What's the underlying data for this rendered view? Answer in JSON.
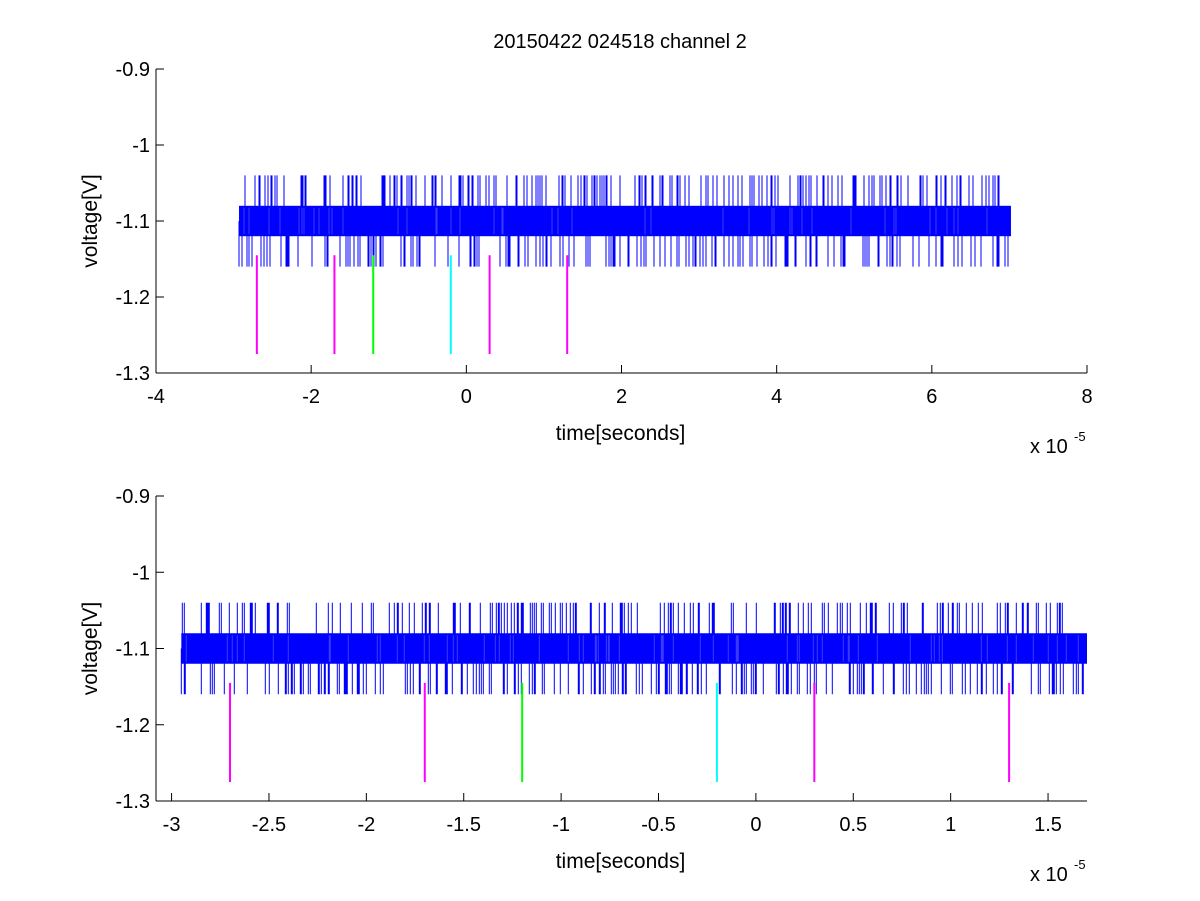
{
  "figure": {
    "title": "20150422 024518 channel 2"
  },
  "colors": {
    "signal": "#0000ff",
    "marker_magenta": "#ff00ff",
    "marker_green": "#00ff00",
    "marker_cyan": "#00ffff",
    "axes": "#000000",
    "background": "#ffffff"
  },
  "chart_data": [
    {
      "type": "line",
      "title": "20150422 024518 channel 2",
      "xlabel": "time[seconds]",
      "ylabel": "voltage[V]",
      "x_exponent_label": "x 10",
      "x_exponent": "-5",
      "xlim": [
        -4,
        8
      ],
      "ylim": [
        -1.3,
        -0.9
      ],
      "xticks": [
        -4,
        -2,
        0,
        2,
        4,
        6,
        8
      ],
      "yticks": [
        -1.3,
        -1.2,
        -1.1,
        -1.0,
        -0.9
      ],
      "xtick_labels": [
        "-4",
        "-2",
        "0",
        "2",
        "4",
        "6",
        "8"
      ],
      "ytick_labels": [
        "-1.3",
        "-1.2",
        "-1.1",
        "-1",
        "-0.9"
      ],
      "grid": false,
      "series": [
        {
          "kind": "noisy-signal",
          "x_range": [
            -2.93,
            7.02
          ],
          "band": [
            -1.12,
            -1.08
          ],
          "spike_high": -1.04,
          "spike_low": -1.16,
          "color": "#0000ff"
        }
      ],
      "markers": [
        {
          "x": -2.7,
          "y_top": -1.145,
          "y_bottom": -1.275,
          "color": "#ff00ff"
        },
        {
          "x": -1.7,
          "y_top": -1.145,
          "y_bottom": -1.275,
          "color": "#ff00ff"
        },
        {
          "x": -1.2,
          "y_top": -1.145,
          "y_bottom": -1.275,
          "color": "#00ff00"
        },
        {
          "x": -0.2,
          "y_top": -1.145,
          "y_bottom": -1.275,
          "color": "#00ffff"
        },
        {
          "x": 0.3,
          "y_top": -1.145,
          "y_bottom": -1.275,
          "color": "#ff00ff"
        },
        {
          "x": 1.3,
          "y_top": -1.145,
          "y_bottom": -1.275,
          "color": "#ff00ff"
        }
      ]
    },
    {
      "type": "line",
      "title": "",
      "xlabel": "time[seconds]",
      "ylabel": "voltage[V]",
      "x_exponent_label": "x 10",
      "x_exponent": "-5",
      "xlim": [
        -3.08,
        1.7
      ],
      "ylim": [
        -1.3,
        -0.9
      ],
      "xticks": [
        -3,
        -2.5,
        -2,
        -1.5,
        -1,
        -0.5,
        0,
        0.5,
        1,
        1.5
      ],
      "yticks": [
        -1.3,
        -1.2,
        -1.1,
        -1.0,
        -0.9
      ],
      "xtick_labels": [
        "-3",
        "-2.5",
        "-2",
        "-1.5",
        "-1",
        "-0.5",
        "0",
        "0.5",
        "1",
        "1.5"
      ],
      "ytick_labels": [
        "-1.3",
        "-1.2",
        "-1.1",
        "-1",
        "-0.9"
      ],
      "grid": false,
      "series": [
        {
          "kind": "noisy-signal",
          "x_range": [
            -2.95,
            1.7
          ],
          "band": [
            -1.12,
            -1.08
          ],
          "spike_high": -1.04,
          "spike_low": -1.16,
          "color": "#0000ff"
        }
      ],
      "markers": [
        {
          "x": -2.7,
          "y_top": -1.145,
          "y_bottom": -1.275,
          "color": "#ff00ff"
        },
        {
          "x": -1.7,
          "y_top": -1.145,
          "y_bottom": -1.275,
          "color": "#ff00ff"
        },
        {
          "x": -1.2,
          "y_top": -1.145,
          "y_bottom": -1.275,
          "color": "#00ff00"
        },
        {
          "x": -0.2,
          "y_top": -1.145,
          "y_bottom": -1.275,
          "color": "#00ffff"
        },
        {
          "x": 0.3,
          "y_top": -1.145,
          "y_bottom": -1.275,
          "color": "#ff00ff"
        },
        {
          "x": 1.3,
          "y_top": -1.145,
          "y_bottom": -1.275,
          "color": "#ff00ff"
        }
      ]
    }
  ]
}
